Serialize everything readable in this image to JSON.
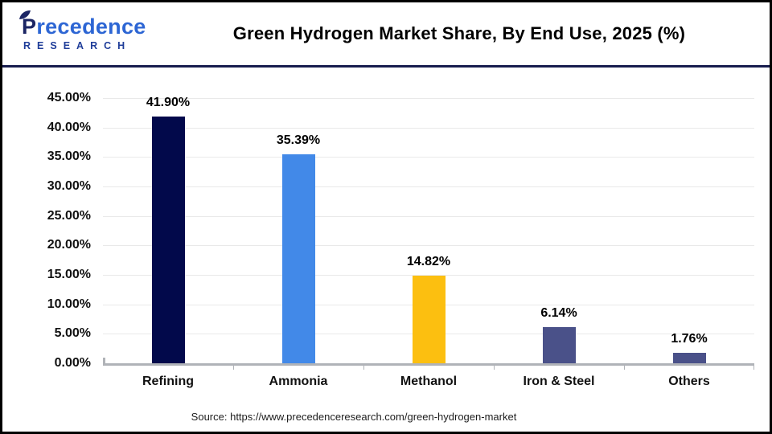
{
  "header": {
    "logo": {
      "word_start": "P",
      "word_rest": "recedence",
      "secondary": "RESEARCH"
    },
    "title": "Green Hydrogen Market Share, By End Use, 2025 (%)"
  },
  "chart_data": {
    "type": "bar",
    "title": "Green Hydrogen Market Share, By End Use, 2025 (%)",
    "categories": [
      "Refining",
      "Ammonia",
      "Methanol",
      "Iron & Steel",
      "Others"
    ],
    "values": [
      41.9,
      35.39,
      14.82,
      6.14,
      1.76
    ],
    "value_labels": [
      "41.90%",
      "35.39%",
      "14.82%",
      "6.14%",
      "1.76%"
    ],
    "bar_colors": [
      "#02094b",
      "#4289e8",
      "#fcbf10",
      "#4a5189",
      "#4a5189"
    ],
    "xlabel": "",
    "ylabel": "",
    "ylim": [
      0,
      45
    ],
    "y_ticks": [
      "0.00%",
      "5.00%",
      "10.00%",
      "15.00%",
      "20.00%",
      "25.00%",
      "30.00%",
      "35.00%",
      "40.00%",
      "45.00%"
    ],
    "y_tick_values": [
      0,
      5,
      10,
      15,
      20,
      25,
      30,
      35,
      40,
      45
    ],
    "grid": "horizontal",
    "legend": "none"
  },
  "source": "Source: https://www.precedenceresearch.com/green-hydrogen-market",
  "colors": {
    "accent_navy": "#171c4e",
    "axis_line": "#b0b3b8",
    "gridline": "#e9e9e9",
    "outer_border": "#000000"
  }
}
